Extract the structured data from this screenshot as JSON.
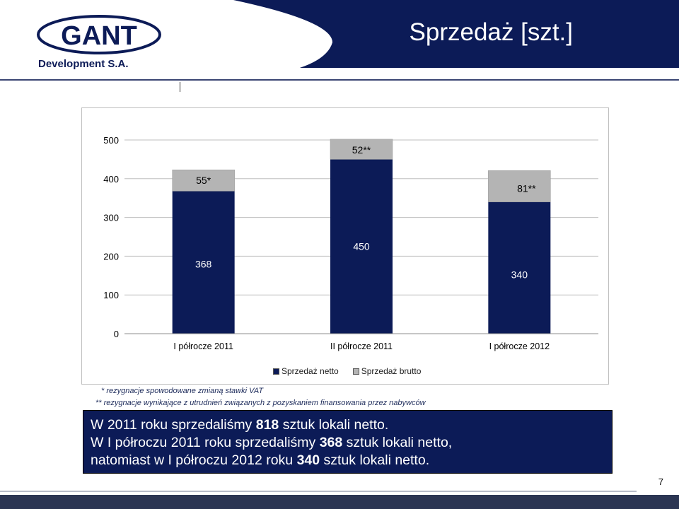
{
  "header": {
    "title": "Sprzedaż [szt.]",
    "logo_text_main": "GANT",
    "logo_text_sub": "Development S.A.",
    "band_color": "#0c1b57"
  },
  "chart_data": {
    "type": "bar",
    "stacked": true,
    "categories": [
      "I półrocze 2011",
      "II półrocze 2011",
      "I półrocze 2012"
    ],
    "series": [
      {
        "name": "Sprzedaż netto",
        "values": [
          368,
          450,
          340
        ],
        "labels": [
          "368",
          "450",
          "340"
        ],
        "color": "#0c1b57"
      },
      {
        "name": "Sprzedaż brutto",
        "values": [
          55,
          52,
          81
        ],
        "labels": [
          "55*",
          "52**",
          "81**"
        ],
        "color": "#b4b4b4"
      }
    ],
    "y_ticks": [
      "0",
      "100",
      "200",
      "300",
      "400",
      "500"
    ],
    "ylim": [
      0,
      500
    ],
    "grid": true,
    "legend_position": "bottom"
  },
  "footnotes": [
    "* rezygnacje spowodowane zmianą stawki VAT",
    "** rezygnacje wynikające z utrudnień związanych z pozyskaniem finansowania przez nabywców"
  ],
  "summary": {
    "line1": {
      "before": "W 2011 roku sprzedaliśmy ",
      "bold": "818",
      "after": " sztuk lokali netto."
    },
    "line2": {
      "before": "W I półroczu 2011 roku sprzedaliśmy ",
      "bold": "368",
      "after": " sztuk lokali netto,"
    },
    "line3": {
      "before": "natomiast w I półroczu 2012 roku ",
      "bold": "340",
      "after": " sztuk lokali netto."
    }
  },
  "page_number": "7"
}
